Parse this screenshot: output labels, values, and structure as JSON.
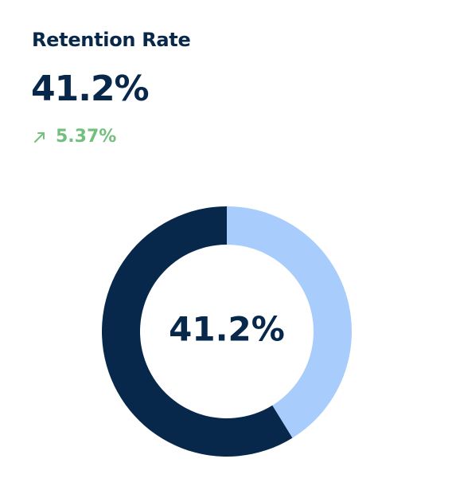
{
  "card": {
    "title": "Retention Rate",
    "value": "41.2%",
    "change": "5.37%",
    "trend_icon": "arrow-up-right-icon"
  },
  "colors": {
    "primary_dark": "#07284a",
    "accent_light": "#a8cdfc",
    "positive": "#72bf7e",
    "background": "#ffffff"
  },
  "chart_data": {
    "type": "pie",
    "style": "donut",
    "center_label": "41.2%",
    "slices": [
      {
        "value": 41.2,
        "color": "#a8cdfc"
      },
      {
        "value": 58.8,
        "color": "#07284a"
      }
    ]
  }
}
